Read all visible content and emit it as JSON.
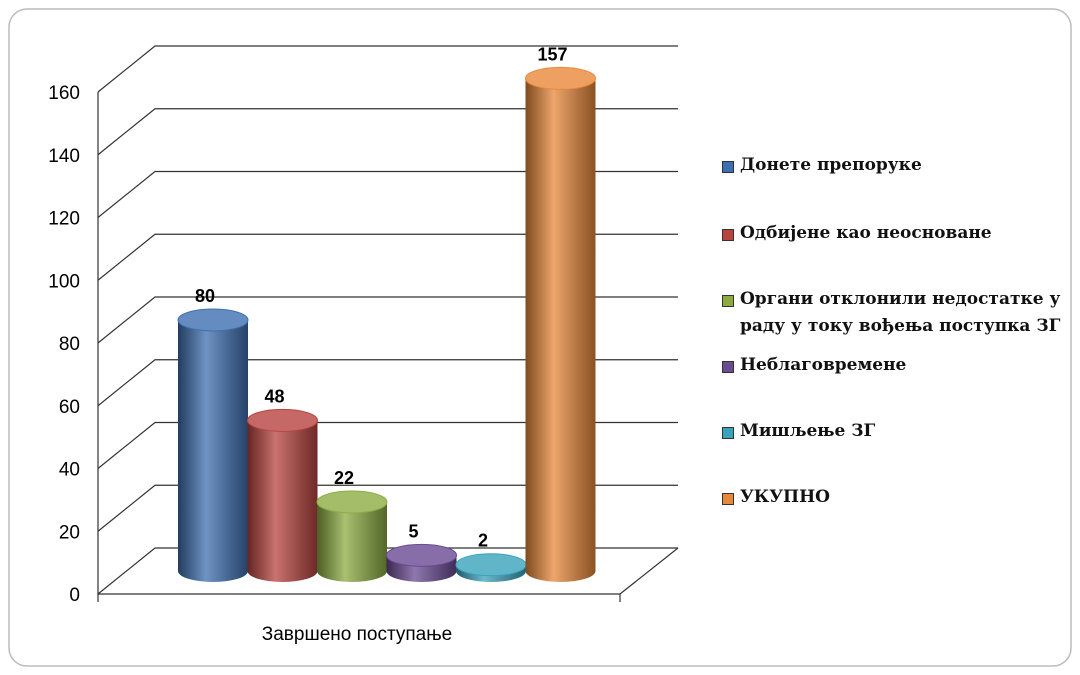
{
  "chart_data": {
    "type": "bar3d",
    "categories": [
      "Завршено поступање"
    ],
    "series": [
      {
        "name": "Донете препоруке",
        "color": "#3f6fb0",
        "values": [
          80
        ]
      },
      {
        "name": "Одбијене као неосноване",
        "color": "#b84440",
        "values": [
          48
        ]
      },
      {
        "name": "Органи отклонили недостатке у раду у току вођења поступка ЗГ",
        "color": "#8cac42",
        "values": [
          22
        ]
      },
      {
        "name": "Неблаговремене",
        "color": "#6a4a93",
        "values": [
          5
        ]
      },
      {
        "name": "Мишљење ЗГ",
        "color": "#3aa3bc",
        "values": [
          2
        ]
      },
      {
        "name": "УКУПНО",
        "color": "#e8883a",
        "values": [
          157
        ]
      }
    ],
    "ylim": [
      0,
      160
    ],
    "yticks": [
      0,
      20,
      40,
      60,
      80,
      100,
      120,
      140,
      160
    ],
    "grid": true,
    "legend": "right"
  }
}
